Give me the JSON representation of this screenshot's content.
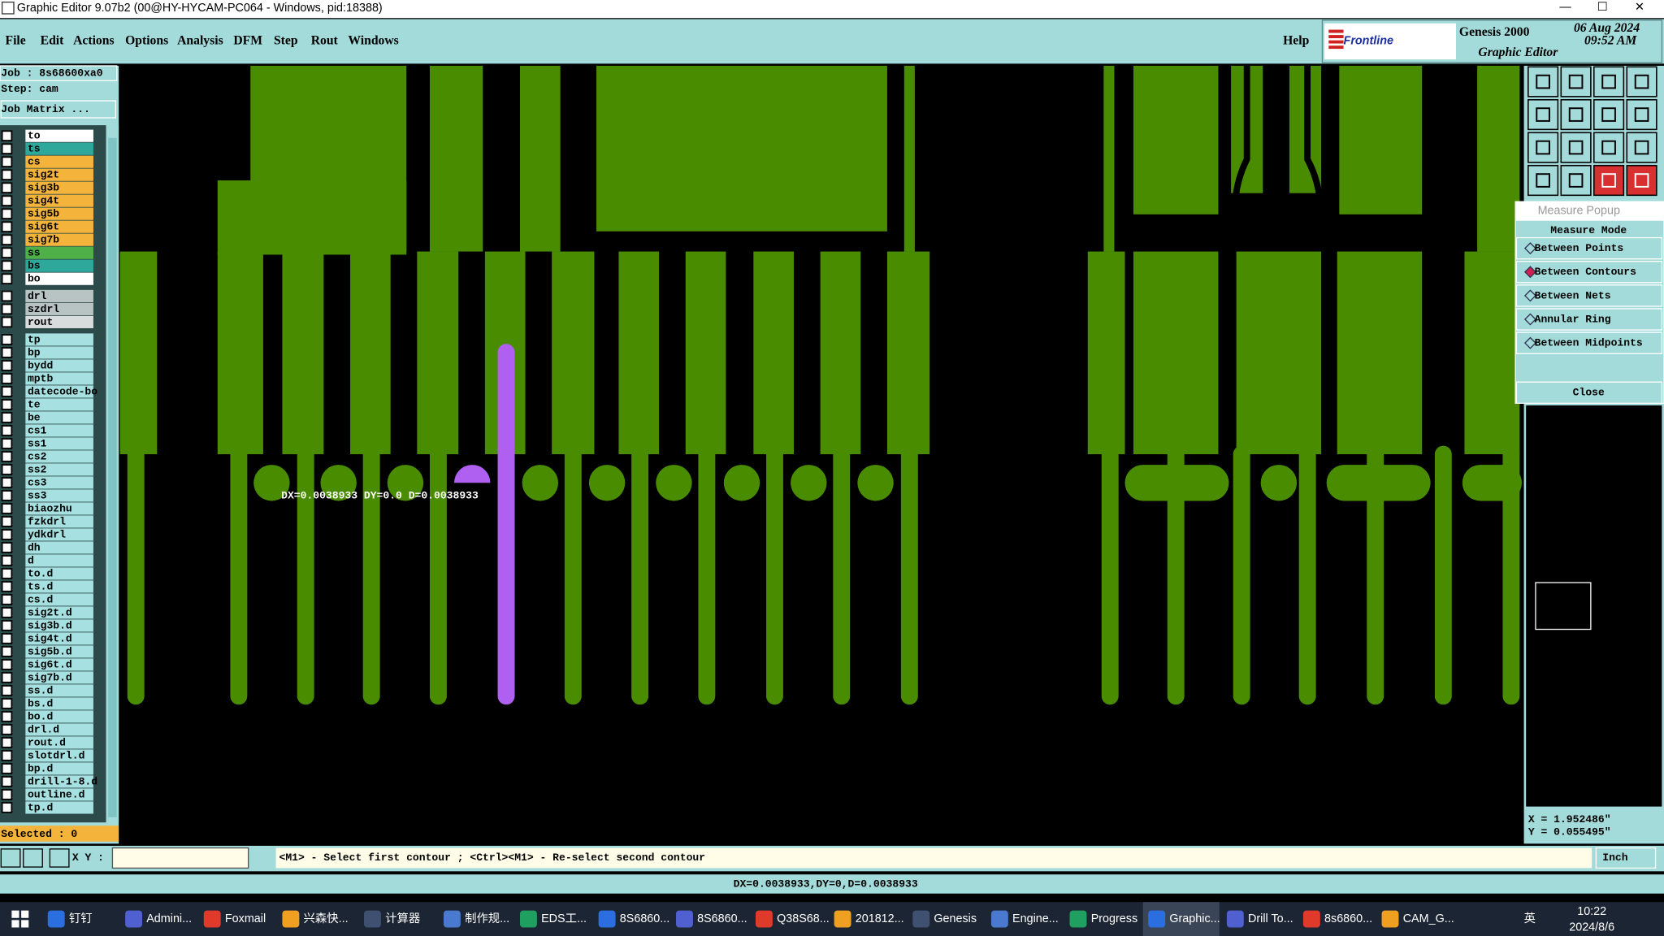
{
  "window_title": "Graphic Editor 9.07b2 (00@HY-HYCAM-PC064 - Windows, pid:18388)",
  "menu": [
    "File",
    "Edit",
    "Actions",
    "Options",
    "Analysis",
    "DFM",
    "Step",
    "Rout",
    "Windows"
  ],
  "help": "Help",
  "brand": {
    "company": "Frontline",
    "product": "Genesis 2000",
    "module": "Graphic Editor",
    "date": "06 Aug 2024",
    "time": "09:52 AM"
  },
  "job": "Job : 8s68600xa0",
  "step": "Step: cam",
  "job_matrix": "Job Matrix ...",
  "layer_groups": [
    [
      {
        "name": "to",
        "color": "#ffffff"
      },
      {
        "name": "ts",
        "color": "#2fa89c"
      },
      {
        "name": "cs",
        "color": "#f4b43c"
      },
      {
        "name": "sig2t",
        "color": "#f4b43c"
      },
      {
        "name": "sig3b",
        "color": "#f4b43c"
      },
      {
        "name": "sig4t",
        "color": "#f4b43c"
      },
      {
        "name": "sig5b",
        "color": "#f4b43c"
      },
      {
        "name": "sig6t",
        "color": "#f4b43c"
      },
      {
        "name": "sig7b",
        "color": "#f4b43c"
      },
      {
        "name": "ss",
        "color": "#4fb04a"
      },
      {
        "name": "bs",
        "color": "#2fa89c"
      },
      {
        "name": "bo",
        "color": "#ffffff"
      }
    ],
    [
      {
        "name": "drl",
        "color": "#b8c4c4"
      },
      {
        "name": "szdrl",
        "color": "#b8c4c4"
      },
      {
        "name": "rout",
        "color": "#d8dcdc"
      }
    ],
    [
      {
        "name": "tp",
        "color": "#a6e0e0"
      },
      {
        "name": "bp",
        "color": "#a6e0e0"
      },
      {
        "name": "bydd",
        "color": "#a6e0e0"
      },
      {
        "name": "mptb",
        "color": "#a6e0e0"
      },
      {
        "name": "datecode-bo",
        "color": "#a6e0e0"
      },
      {
        "name": "te",
        "color": "#a6e0e0"
      },
      {
        "name": "be",
        "color": "#a6e0e0"
      },
      {
        "name": "cs1",
        "color": "#a6e0e0"
      },
      {
        "name": "ss1",
        "color": "#a6e0e0"
      },
      {
        "name": "cs2",
        "color": "#a6e0e0"
      },
      {
        "name": "ss2",
        "color": "#a6e0e0"
      },
      {
        "name": "cs3",
        "color": "#a6e0e0"
      },
      {
        "name": "ss3",
        "color": "#a6e0e0"
      },
      {
        "name": "biaozhu",
        "color": "#a6e0e0"
      },
      {
        "name": "fzkdrl",
        "color": "#a6e0e0"
      },
      {
        "name": "ydkdrl",
        "color": "#a6e0e0"
      },
      {
        "name": "dh",
        "color": "#a6e0e0"
      },
      {
        "name": "d",
        "color": "#a6e0e0"
      },
      {
        "name": "to.d",
        "color": "#a6e0e0"
      },
      {
        "name": "ts.d",
        "color": "#a6e0e0"
      },
      {
        "name": "cs.d",
        "color": "#a6e0e0"
      },
      {
        "name": "sig2t.d",
        "color": "#a6e0e0"
      },
      {
        "name": "sig3b.d",
        "color": "#a6e0e0"
      },
      {
        "name": "sig4t.d",
        "color": "#a6e0e0"
      },
      {
        "name": "sig5b.d",
        "color": "#a6e0e0"
      },
      {
        "name": "sig6t.d",
        "color": "#a6e0e0"
      },
      {
        "name": "sig7b.d",
        "color": "#a6e0e0"
      },
      {
        "name": "ss.d",
        "color": "#a6e0e0"
      },
      {
        "name": "bs.d",
        "color": "#a6e0e0"
      },
      {
        "name": "bo.d",
        "color": "#a6e0e0"
      },
      {
        "name": "drl.d",
        "color": "#a6e0e0"
      },
      {
        "name": "rout.d",
        "color": "#a6e0e0"
      },
      {
        "name": "slotdrl.d",
        "color": "#a6e0e0"
      },
      {
        "name": "bp.d",
        "color": "#a6e0e0"
      },
      {
        "name": "drill-1-8.d",
        "color": "#a6e0e0"
      },
      {
        "name": "outline.d",
        "color": "#a6e0e0"
      },
      {
        "name": "tp.d",
        "color": "#a6e0e0"
      }
    ]
  ],
  "selected": "Selected : 0",
  "measure_label": "DX=0.0038933 DY=0.0 D=0.0038933",
  "measure_popup": {
    "title": "Measure Popup",
    "mode": "Measure Mode",
    "options": [
      "Between Points",
      "Between Contours",
      "Between Nets",
      "Annular Ring",
      "Between Midpoints"
    ],
    "selected": 1,
    "close": "Close"
  },
  "coords": {
    "x": "X = 1.952486\"",
    "y": "Y = 0.055495\""
  },
  "xy_label": "X Y :",
  "prompt": "<M1> - Select first contour ; <Ctrl><M1> - Re-select second contour",
  "units": "Inch",
  "status": "DX=0.0038933,DY=0,D=0.0038933",
  "taskbar": [
    "钉钉",
    "Admini...",
    "Foxmail",
    "兴森快...",
    "计算器",
    "制作规...",
    "EDS工...",
    "8S6860...",
    "8S6860...",
    "Q38S68...",
    "201812...",
    "Genesis",
    "Engine...",
    "Progress",
    "Graphic...",
    "Drill To...",
    "8s6860...",
    "CAM_G..."
  ],
  "tray": {
    "ime": "英",
    "time": "10:22",
    "date": "2024/8/6"
  }
}
